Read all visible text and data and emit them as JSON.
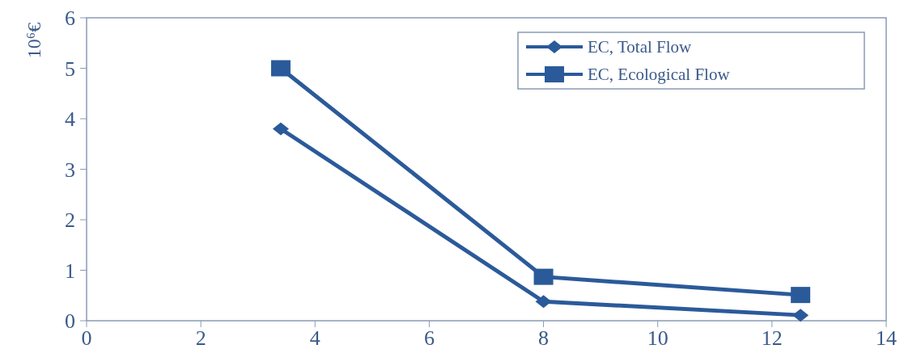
{
  "chart_data": {
    "type": "line",
    "ylabel": "10⁶€",
    "xlim": [
      0,
      14
    ],
    "xticks": [
      0,
      2,
      4,
      6,
      8,
      10,
      12,
      14
    ],
    "ylim": [
      0,
      6
    ],
    "yticks": [
      0,
      1,
      2,
      3,
      4,
      5,
      6
    ],
    "grid": false,
    "legend": "top right",
    "series": [
      {
        "name": "EC, Total Flow",
        "color": "#2b5a9a",
        "marker": "diamond",
        "x": [
          3.4,
          8,
          12.5
        ],
        "values": [
          3.8,
          0.38,
          0.11
        ]
      },
      {
        "name": "EC, Ecological Flow",
        "color": "#2b5a9a",
        "marker": "square",
        "x": [
          3.4,
          8,
          12.5
        ],
        "values": [
          5,
          0.87,
          0.51
        ]
      }
    ]
  }
}
